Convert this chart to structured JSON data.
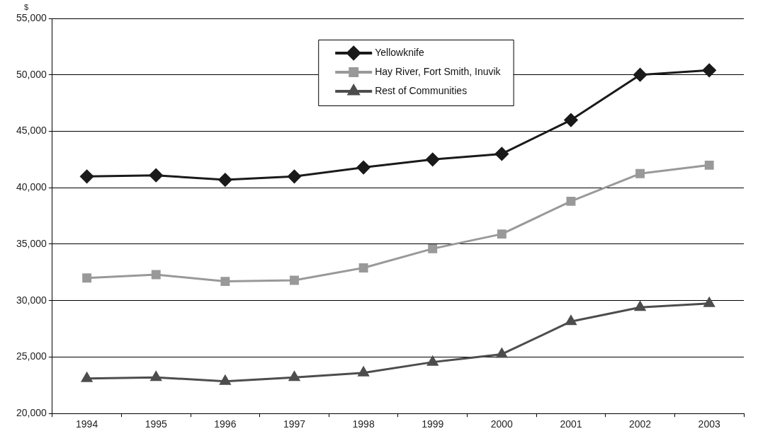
{
  "chart_data": {
    "type": "line",
    "ylabel": "$",
    "categories": [
      "1994",
      "1995",
      "1996",
      "1997",
      "1998",
      "1999",
      "2000",
      "2001",
      "2002",
      "2003"
    ],
    "series": [
      {
        "name": "Yellowknife",
        "color": "#1a1a1a",
        "marker": "diamond",
        "values": [
          41000,
          41100,
          40700,
          41000,
          41800,
          42500,
          43000,
          46000,
          50000,
          50400
        ]
      },
      {
        "name": "Hay River, Fort Smith, Inuvik",
        "color": "#999999",
        "marker": "square",
        "values": [
          32000,
          32300,
          31700,
          31800,
          32900,
          34600,
          35900,
          38800,
          41250,
          42000
        ]
      },
      {
        "name": "Rest of Communities",
        "color": "#4d4d4d",
        "marker": "triangle",
        "values": [
          23100,
          23200,
          22850,
          23200,
          23600,
          24550,
          25250,
          28150,
          29400,
          29750
        ]
      }
    ],
    "ylim": [
      20000,
      55000
    ],
    "yticks": [
      {
        "value": 20000,
        "label": "20,000"
      },
      {
        "value": 25000,
        "label": "25,000"
      },
      {
        "value": 30000,
        "label": "30,000"
      },
      {
        "value": 35000,
        "label": "35,000"
      },
      {
        "value": 40000,
        "label": "40,000"
      },
      {
        "value": 45000,
        "label": "45,000"
      },
      {
        "value": 50000,
        "label": "50,000"
      },
      {
        "value": 55000,
        "label": "55,000"
      }
    ],
    "grid": "y",
    "legend": "top",
    "line_style": "solid"
  }
}
